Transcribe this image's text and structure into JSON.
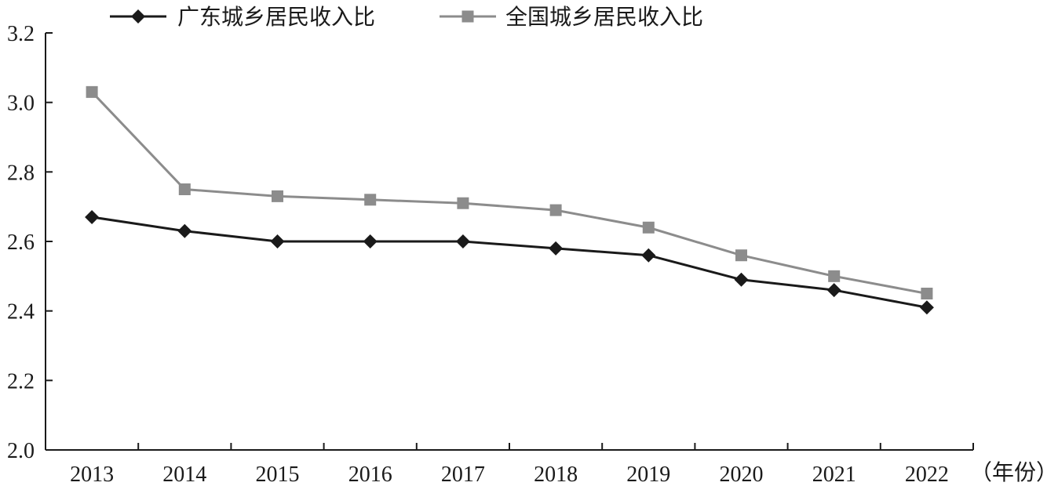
{
  "chart_data": {
    "type": "line",
    "x": [
      "2013",
      "2014",
      "2015",
      "2016",
      "2017",
      "2018",
      "2019",
      "2020",
      "2021",
      "2022"
    ],
    "series": [
      {
        "name": "广东城乡居民收入比",
        "values": [
          2.67,
          2.63,
          2.6,
          2.6,
          2.6,
          2.58,
          2.56,
          2.49,
          2.46,
          2.41
        ],
        "color": "#1a1a1a",
        "marker": "diamond"
      },
      {
        "name": "全国城乡居民收入比",
        "values": [
          3.03,
          2.75,
          2.73,
          2.72,
          2.71,
          2.69,
          2.64,
          2.56,
          2.5,
          2.45
        ],
        "color": "#8c8c8c",
        "marker": "square"
      }
    ],
    "ylim": [
      2.0,
      3.2
    ],
    "yticks": [
      "2.0",
      "2.2",
      "2.4",
      "2.6",
      "2.8",
      "3.0",
      "3.2"
    ],
    "xlabel": "（年份）",
    "ylabel": "",
    "title": "",
    "grid": false,
    "legend": "top"
  }
}
